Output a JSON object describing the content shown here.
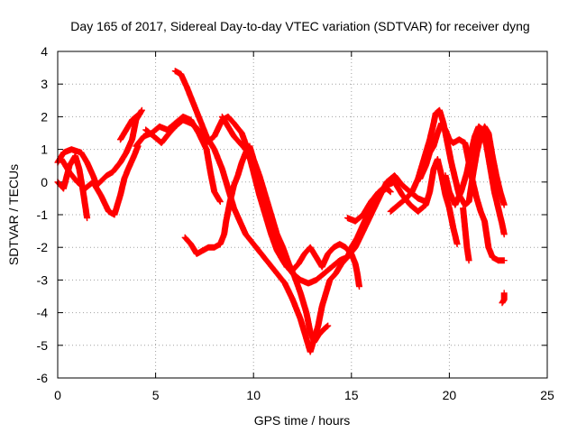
{
  "chart_data": {
    "type": "scatter",
    "title": "Day 165 of 2017, Sidereal Day-to-day VTEC variation (SDTVAR) for receiver dyng",
    "xlabel": "GPS time / hours",
    "ylabel": "SDTVAR / TECUs",
    "xlim": [
      0,
      25
    ],
    "ylim": [
      -6,
      4
    ],
    "xticks": [
      0,
      5,
      10,
      15,
      20,
      25
    ],
    "yticks": [
      -6,
      -5,
      -4,
      -3,
      -2,
      -1,
      0,
      1,
      2,
      3,
      4
    ],
    "grid": true,
    "legend": "none",
    "marker": "+",
    "series_color": "#ff0000",
    "series": [
      {
        "name": "t1",
        "points": [
          [
            0.0,
            0.6
          ],
          [
            0.3,
            0.9
          ],
          [
            0.7,
            1.0
          ],
          [
            1.2,
            0.9
          ],
          [
            1.5,
            0.6
          ],
          [
            1.8,
            0.2
          ],
          [
            2.0,
            -0.1
          ],
          [
            2.5,
            0.2
          ],
          [
            2.8,
            0.3
          ],
          [
            3.2,
            0.6
          ],
          [
            3.5,
            0.9
          ],
          [
            3.8,
            1.3
          ],
          [
            4.0,
            1.9
          ],
          [
            4.3,
            2.2
          ]
        ]
      },
      {
        "name": "t2",
        "points": [
          [
            0.0,
            0.0
          ],
          [
            0.3,
            -0.2
          ],
          [
            0.6,
            0.5
          ],
          [
            0.9,
            0.8
          ],
          [
            1.1,
            0.4
          ],
          [
            1.3,
            -0.3
          ],
          [
            1.5,
            -1.1
          ]
        ]
      },
      {
        "name": "t3",
        "points": [
          [
            0.2,
            0.7
          ],
          [
            0.6,
            0.3
          ],
          [
            1.0,
            0.0
          ],
          [
            1.4,
            -0.2
          ],
          [
            1.8,
            0.0
          ],
          [
            2.2,
            -0.4
          ],
          [
            2.6,
            -0.9
          ],
          [
            2.9,
            -1.0
          ],
          [
            3.2,
            -0.4
          ],
          [
            3.4,
            0.1
          ],
          [
            3.6,
            0.4
          ],
          [
            3.9,
            0.8
          ],
          [
            4.1,
            1.1
          ]
        ]
      },
      {
        "name": "t4",
        "points": [
          [
            3.2,
            1.3
          ],
          [
            3.5,
            1.6
          ],
          [
            3.8,
            1.9
          ],
          [
            4.0,
            2.0
          ],
          [
            4.2,
            2.1
          ]
        ]
      },
      {
        "name": "t5",
        "points": [
          [
            4.5,
            1.6
          ],
          [
            4.9,
            1.4
          ],
          [
            5.3,
            1.2
          ],
          [
            5.7,
            1.5
          ],
          [
            6.0,
            1.7
          ],
          [
            6.4,
            1.9
          ],
          [
            6.8,
            1.8
          ],
          [
            7.2,
            1.6
          ],
          [
            7.6,
            1.2
          ],
          [
            8.0,
            1.4
          ],
          [
            8.4,
            1.9
          ],
          [
            8.7,
            2.0
          ],
          [
            9.0,
            1.8
          ],
          [
            9.4,
            1.5
          ],
          [
            9.7,
            1.0
          ],
          [
            10.0,
            0.3
          ],
          [
            10.3,
            -0.4
          ],
          [
            10.6,
            -1.0
          ],
          [
            10.9,
            -1.6
          ],
          [
            11.2,
            -2.1
          ],
          [
            11.6,
            -2.5
          ],
          [
            12.0,
            -2.8
          ],
          [
            12.4,
            -3.0
          ],
          [
            12.8,
            -3.1
          ],
          [
            13.2,
            -3.0
          ],
          [
            13.6,
            -2.8
          ],
          [
            14.0,
            -2.6
          ],
          [
            14.4,
            -2.4
          ],
          [
            14.8,
            -2.3
          ],
          [
            15.2,
            -2.0
          ],
          [
            15.6,
            -1.5
          ],
          [
            16.0,
            -1.0
          ],
          [
            16.4,
            -0.5
          ],
          [
            16.8,
            0.0
          ],
          [
            17.2,
            0.2
          ],
          [
            17.6,
            -0.1
          ],
          [
            18.0,
            -0.3
          ],
          [
            18.4,
            -0.5
          ],
          [
            18.8,
            -0.6
          ]
        ]
      },
      {
        "name": "t6",
        "points": [
          [
            4.0,
            1.1
          ],
          [
            4.4,
            1.4
          ],
          [
            4.8,
            1.5
          ],
          [
            5.2,
            1.7
          ],
          [
            5.6,
            1.6
          ],
          [
            6.0,
            1.8
          ],
          [
            6.4,
            2.0
          ],
          [
            6.8,
            1.9
          ],
          [
            7.2,
            1.5
          ],
          [
            7.6,
            1.0
          ],
          [
            7.8,
            0.3
          ],
          [
            8.0,
            -0.3
          ],
          [
            8.3,
            -0.6
          ]
        ]
      },
      {
        "name": "t7",
        "points": [
          [
            6.0,
            3.4
          ],
          [
            6.3,
            3.3
          ],
          [
            6.6,
            2.9
          ],
          [
            6.8,
            2.6
          ],
          [
            7.0,
            2.3
          ],
          [
            7.2,
            2.0
          ],
          [
            7.4,
            1.7
          ],
          [
            7.6,
            1.4
          ],
          [
            7.8,
            1.2
          ],
          [
            8.0,
            1.0
          ],
          [
            8.2,
            0.7
          ],
          [
            8.4,
            0.4
          ],
          [
            8.6,
            0.0
          ],
          [
            8.8,
            -0.4
          ],
          [
            9.0,
            -0.8
          ],
          [
            9.3,
            -1.2
          ],
          [
            9.6,
            -1.6
          ],
          [
            10.0,
            -1.9
          ],
          [
            10.4,
            -2.2
          ],
          [
            10.8,
            -2.5
          ],
          [
            11.2,
            -2.8
          ],
          [
            11.6,
            -3.1
          ],
          [
            12.0,
            -3.6
          ],
          [
            12.4,
            -4.2
          ],
          [
            12.7,
            -4.8
          ],
          [
            12.9,
            -5.2
          ],
          [
            13.1,
            -4.8
          ],
          [
            13.3,
            -4.4
          ],
          [
            13.5,
            -3.8
          ],
          [
            13.7,
            -3.4
          ],
          [
            13.9,
            -3.0
          ],
          [
            14.2,
            -2.8
          ],
          [
            14.5,
            -2.5
          ],
          [
            14.8,
            -2.3
          ],
          [
            15.0,
            -2.0
          ],
          [
            15.3,
            -1.7
          ],
          [
            15.6,
            -1.3
          ],
          [
            15.9,
            -0.9
          ],
          [
            16.2,
            -0.5
          ],
          [
            16.5,
            -0.3
          ],
          [
            16.8,
            -0.2
          ],
          [
            17.0,
            -0.3
          ]
        ]
      },
      {
        "name": "t8",
        "points": [
          [
            6.5,
            -1.7
          ],
          [
            6.8,
            -1.9
          ],
          [
            7.1,
            -2.2
          ],
          [
            7.4,
            -2.1
          ],
          [
            7.7,
            -2.0
          ],
          [
            8.0,
            -2.0
          ],
          [
            8.3,
            -1.9
          ],
          [
            8.5,
            -1.6
          ],
          [
            8.6,
            -1.2
          ],
          [
            8.8,
            -0.6
          ],
          [
            9.0,
            -0.1
          ],
          [
            9.2,
            0.2
          ],
          [
            9.4,
            0.6
          ],
          [
            9.6,
            0.9
          ],
          [
            9.8,
            1.1
          ],
          [
            10.0,
            0.7
          ],
          [
            10.3,
            0.2
          ],
          [
            10.6,
            -0.4
          ],
          [
            10.9,
            -1.0
          ],
          [
            11.2,
            -1.6
          ],
          [
            11.5,
            -2.0
          ],
          [
            11.8,
            -2.5
          ],
          [
            12.1,
            -2.9
          ],
          [
            12.4,
            -3.4
          ],
          [
            12.7,
            -4.0
          ],
          [
            12.9,
            -4.6
          ],
          [
            13.1,
            -4.9
          ],
          [
            13.3,
            -4.7
          ],
          [
            13.6,
            -4.5
          ],
          [
            13.8,
            -4.4
          ]
        ]
      },
      {
        "name": "t9",
        "points": [
          [
            8.4,
            2.0
          ],
          [
            8.7,
            1.7
          ],
          [
            9.0,
            1.4
          ],
          [
            9.3,
            1.2
          ],
          [
            9.6,
            1.0
          ],
          [
            9.9,
            0.6
          ],
          [
            10.2,
            0.1
          ],
          [
            10.5,
            -0.5
          ],
          [
            10.8,
            -1.1
          ],
          [
            11.1,
            -1.8
          ],
          [
            11.4,
            -2.3
          ],
          [
            11.7,
            -2.6
          ],
          [
            12.0,
            -2.7
          ],
          [
            12.3,
            -2.5
          ],
          [
            12.6,
            -2.2
          ],
          [
            12.9,
            -2.0
          ],
          [
            13.2,
            -2.3
          ],
          [
            13.5,
            -2.6
          ],
          [
            13.8,
            -2.2
          ],
          [
            14.1,
            -2.0
          ],
          [
            14.4,
            -1.9
          ],
          [
            14.7,
            -2.0
          ],
          [
            15.0,
            -2.2
          ],
          [
            15.2,
            -2.5
          ],
          [
            15.3,
            -2.8
          ],
          [
            15.4,
            -3.2
          ]
        ]
      },
      {
        "name": "t10",
        "points": [
          [
            14.8,
            -1.1
          ],
          [
            15.2,
            -1.2
          ],
          [
            15.6,
            -1.0
          ],
          [
            16.0,
            -0.6
          ],
          [
            16.4,
            -0.3
          ],
          [
            16.8,
            -0.1
          ],
          [
            17.2,
            0.0
          ],
          [
            17.6,
            -0.4
          ],
          [
            18.0,
            -0.7
          ],
          [
            18.4,
            -0.9
          ],
          [
            18.8,
            -0.7
          ],
          [
            19.0,
            -0.3
          ],
          [
            19.2,
            0.4
          ],
          [
            19.4,
            0.7
          ],
          [
            19.6,
            0.2
          ],
          [
            19.8,
            -0.4
          ],
          [
            20.0,
            -0.8
          ],
          [
            20.2,
            -1.4
          ],
          [
            20.4,
            -1.9
          ]
        ]
      },
      {
        "name": "t11",
        "points": [
          [
            17.0,
            -0.9
          ],
          [
            17.4,
            -0.7
          ],
          [
            17.8,
            -0.5
          ],
          [
            18.1,
            -0.3
          ],
          [
            18.4,
            0.1
          ],
          [
            18.6,
            0.5
          ],
          [
            18.8,
            0.9
          ],
          [
            19.0,
            1.3
          ],
          [
            19.2,
            1.8
          ],
          [
            19.3,
            2.1
          ],
          [
            19.5,
            2.2
          ],
          [
            19.7,
            1.8
          ],
          [
            19.9,
            1.2
          ],
          [
            20.1,
            0.6
          ],
          [
            20.3,
            0.1
          ],
          [
            20.5,
            -0.4
          ],
          [
            20.8,
            -0.7
          ],
          [
            21.0,
            -0.6
          ],
          [
            21.2,
            0.2
          ],
          [
            21.4,
            0.9
          ],
          [
            21.6,
            1.4
          ],
          [
            21.8,
            1.7
          ],
          [
            22.0,
            1.5
          ],
          [
            22.2,
            0.8
          ],
          [
            22.4,
            0.2
          ],
          [
            22.6,
            -0.3
          ],
          [
            22.8,
            -0.7
          ]
        ]
      },
      {
        "name": "t12",
        "points": [
          [
            18.5,
            0.1
          ],
          [
            18.8,
            0.5
          ],
          [
            19.0,
            0.9
          ],
          [
            19.2,
            1.1
          ],
          [
            19.4,
            1.5
          ],
          [
            19.6,
            1.8
          ],
          [
            19.8,
            1.6
          ],
          [
            20.0,
            1.3
          ],
          [
            20.2,
            1.2
          ],
          [
            20.5,
            1.3
          ],
          [
            20.8,
            1.2
          ],
          [
            21.0,
            0.6
          ],
          [
            21.2,
            0.0
          ],
          [
            21.4,
            -0.5
          ],
          [
            21.6,
            -0.9
          ],
          [
            21.8,
            -1.2
          ],
          [
            21.9,
            -1.6
          ],
          [
            22.0,
            -2.0
          ],
          [
            22.2,
            -2.3
          ],
          [
            22.5,
            -2.4
          ],
          [
            22.8,
            -2.4
          ]
        ]
      },
      {
        "name": "t13",
        "points": [
          [
            19.8,
            0.2
          ],
          [
            20.0,
            -0.3
          ],
          [
            20.3,
            -0.7
          ],
          [
            20.6,
            -0.3
          ],
          [
            20.9,
            0.3
          ],
          [
            21.1,
            0.9
          ],
          [
            21.3,
            1.4
          ],
          [
            21.5,
            1.7
          ],
          [
            21.7,
            1.6
          ],
          [
            21.9,
            1.1
          ],
          [
            22.1,
            0.4
          ],
          [
            22.3,
            -0.3
          ],
          [
            22.5,
            -0.8
          ],
          [
            22.7,
            -1.3
          ],
          [
            22.8,
            -1.6
          ]
        ]
      },
      {
        "name": "t14",
        "points": [
          [
            20.7,
            -0.8
          ],
          [
            20.8,
            -1.4
          ],
          [
            20.9,
            -2.0
          ],
          [
            21.0,
            -2.4
          ]
        ]
      },
      {
        "name": "t15",
        "points": [
          [
            22.7,
            -3.7
          ],
          [
            22.8,
            -3.6
          ],
          [
            22.8,
            -3.4
          ]
        ]
      }
    ]
  }
}
